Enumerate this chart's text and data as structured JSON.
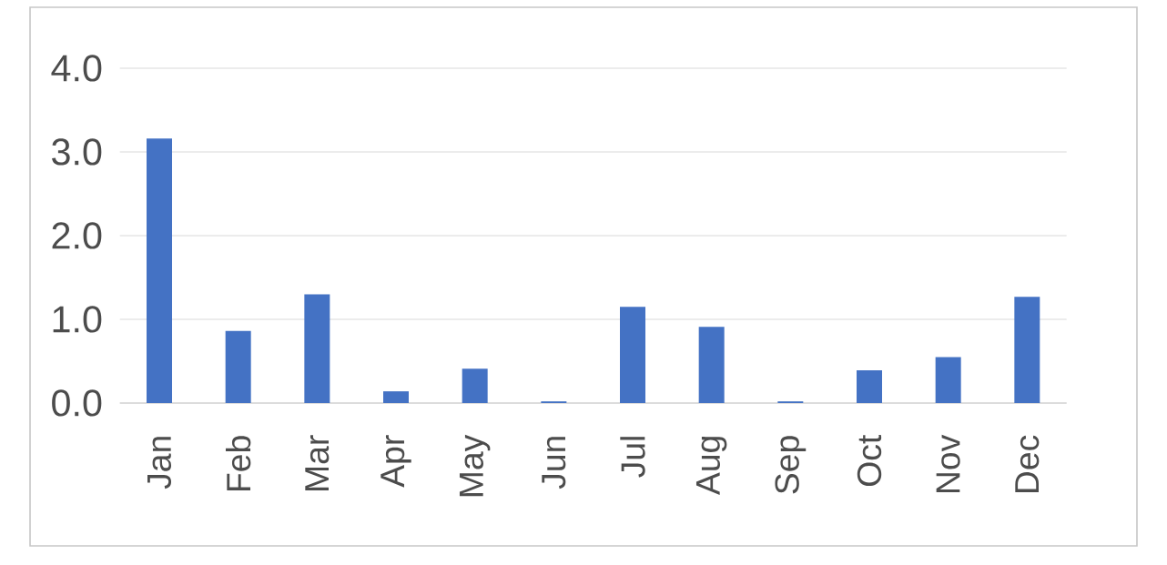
{
  "chart_data": {
    "type": "bar",
    "categories": [
      "Jan",
      "Feb",
      "Mar",
      "Apr",
      "May",
      "Jun",
      "Jul",
      "Aug",
      "Sep",
      "Oct",
      "Nov",
      "Dec"
    ],
    "values": [
      3.16,
      0.86,
      1.3,
      0.14,
      0.41,
      0.02,
      1.15,
      0.91,
      0.02,
      0.39,
      0.55,
      1.27
    ],
    "color": "#4472c4",
    "ylim": [
      0,
      4
    ],
    "yticks": [
      {
        "value": 0,
        "label": "0.0"
      },
      {
        "value": 1,
        "label": "1.0"
      },
      {
        "value": 2,
        "label": "2.0"
      },
      {
        "value": 3,
        "label": "3.0"
      },
      {
        "value": 4,
        "label": "4.0"
      }
    ],
    "grid": "y"
  }
}
